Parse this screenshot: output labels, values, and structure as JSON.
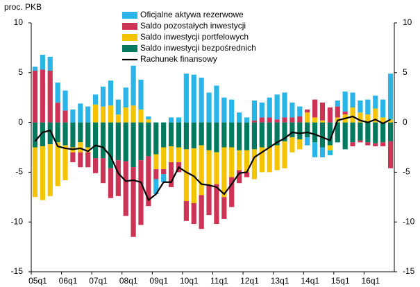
{
  "chart_data": {
    "type": "bar",
    "ylabel": "proc. PKB",
    "categories": [
      "05q1",
      null,
      null,
      null,
      "06q1",
      null,
      null,
      null,
      "07q1",
      null,
      null,
      null,
      "08q1",
      null,
      null,
      null,
      "09q1",
      null,
      null,
      null,
      "10q1",
      null,
      null,
      null,
      "11q1",
      null,
      null,
      null,
      "12q1",
      null,
      null,
      null,
      "13q1",
      null,
      null,
      null,
      "14q1",
      null,
      null,
      null,
      "15q1",
      null,
      null,
      null,
      "16q1",
      null,
      null,
      null
    ],
    "series": [
      {
        "name": "Oficjalne aktywa rezerwowe",
        "color": "#29b5e8",
        "values": [
          0.4,
          1.5,
          1.4,
          2.0,
          2.0,
          1.3,
          1.9,
          1.6,
          1.0,
          2.0,
          2.5,
          1.5,
          2.0,
          4.0,
          3.0,
          0.3,
          -1.5,
          -0.8,
          0.5,
          0.5,
          4.9,
          4.8,
          4.5,
          3.0,
          3.7,
          2.5,
          2.3,
          1.0,
          0.5,
          2.0,
          1.5,
          2.0,
          2.5,
          2.5,
          1.5,
          1.0,
          -0.8,
          -1.5,
          -1.0,
          -0.5,
          0.6,
          2.0,
          1.5,
          1.2,
          1.5,
          1.3,
          1.8,
          4.6
        ]
      },
      {
        "name": "Saldo pozostałych inwestycji",
        "color": "#cc3355",
        "values": [
          5.2,
          5.3,
          5.2,
          2.0,
          1.2,
          -1.0,
          -1.5,
          -1.5,
          -1.5,
          -2.5,
          -3.0,
          -3.6,
          -5.5,
          -7.0,
          -6.5,
          -5.0,
          -1.0,
          -0.5,
          -2.5,
          -1.0,
          -2.0,
          -2.1,
          -3.4,
          -3.0,
          -4.0,
          -2.2,
          -3.0,
          -1.3,
          -0.5,
          0.2,
          0.5,
          0.5,
          0.3,
          0.5,
          0.5,
          0.6,
          0.3,
          1.8,
          1.8,
          1.5,
          1.1,
          0.3,
          -0.4,
          -0.2,
          -0.3,
          -0.3,
          -0.4,
          -2.7
        ]
      },
      {
        "name": "Saldo inwestycji portfelowych",
        "color": "#f5c400",
        "values": [
          -5.0,
          -5.4,
          -5.2,
          -4.4,
          -3.5,
          -0.5,
          -1.0,
          -0.5,
          1.8,
          1.6,
          1.7,
          0.8,
          1.5,
          1.7,
          1.3,
          0.3,
          -1.5,
          -2.2,
          -1.6,
          -1.5,
          -5.2,
          -5.5,
          -5.0,
          -3.5,
          -3.2,
          -5.0,
          -3.0,
          -2.0,
          -2.2,
          -3.0,
          -2.5,
          -2.5,
          -2.5,
          -2.7,
          -1.5,
          -1.0,
          1.0,
          0.5,
          0.2,
          -0.5,
          0.5,
          0.8,
          1.5,
          1.0,
          0.8,
          1.4,
          0.5,
          0.3
        ]
      },
      {
        "name": "Saldo inwestycji bezpośrednich",
        "color": "#007a5e",
        "values": [
          -2.5,
          -2.4,
          -2.2,
          -2.0,
          -2.3,
          -2.5,
          -2.0,
          -2.5,
          -3.6,
          -3.6,
          -4.6,
          -3.8,
          -3.9,
          -4.5,
          -3.8,
          -3.4,
          -3.2,
          -2.5,
          -2.4,
          -2.5,
          -2.7,
          -2.6,
          -2.3,
          -2.8,
          -3.0,
          -2.5,
          -2.5,
          -2.8,
          -2.8,
          -2.7,
          -2.5,
          -2.5,
          -2.3,
          -1.9,
          -1.5,
          -1.7,
          -1.5,
          -2.0,
          -2.5,
          -2.3,
          -2.0,
          -2.7,
          -2.0,
          -1.8,
          -2.0,
          -2.1,
          -2.0,
          -1.9
        ]
      },
      {
        "name": "Rachunek finansowy",
        "color": "#000000",
        "kind": "line",
        "values": [
          -1.9,
          -1.0,
          -0.8,
          -2.4,
          -2.6,
          -2.7,
          -2.6,
          -2.9,
          -2.3,
          -2.5,
          -3.4,
          -5.1,
          -5.9,
          -5.8,
          -6.0,
          -7.8,
          -7.2,
          -6.0,
          -6.0,
          -4.5,
          -5.0,
          -5.4,
          -6.2,
          -6.3,
          -6.5,
          -7.2,
          -6.2,
          -5.1,
          -5.0,
          -3.5,
          -3.0,
          -2.5,
          -2.0,
          -1.6,
          -1.0,
          -1.1,
          -1.0,
          -1.2,
          -1.5,
          -1.8,
          0.2,
          0.4,
          0.6,
          0.2,
          0.0,
          0.3,
          -0.1,
          0.3
        ]
      }
    ],
    "ylim": [
      -15,
      10
    ],
    "yticks": [
      -15,
      -10,
      -5,
      0,
      5,
      10
    ],
    "y2lim": [
      -15,
      10
    ],
    "y2ticks": [
      -15,
      -10,
      -5,
      0,
      5,
      10
    ]
  }
}
